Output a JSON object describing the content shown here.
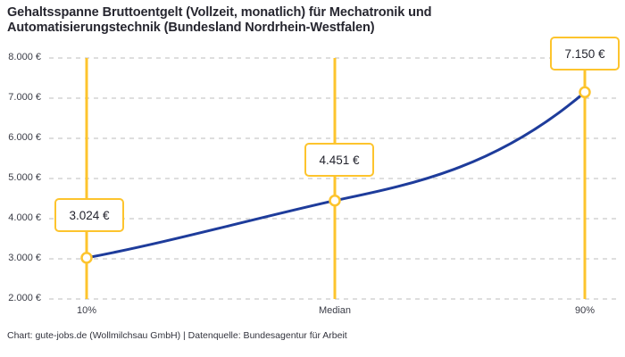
{
  "title": "Gehaltsspanne Bruttoentgelt (Vollzeit, monatlich) für Mechatronik und Automatisierungstechnik (Bundesland Nordrhein-Westfalen)",
  "footer": "Chart: gute-jobs.de (Wollmilchsau GmbH) | Datenquelle: Bundesagentur für Arbeit",
  "chart_data": {
    "type": "line",
    "categories": [
      "10%",
      "Median",
      "90%"
    ],
    "values": [
      3024,
      4451,
      7150
    ],
    "value_labels": [
      "3.024 €",
      "4.451 €",
      "7.150 €"
    ],
    "y_ticks": [
      "8.000 €",
      "7.000 €",
      "6.000 €",
      "5.000 €",
      "4.000 €",
      "3.000 €",
      "2.000 €"
    ],
    "ylim": [
      2000,
      8000
    ],
    "xlabel": "",
    "ylabel": "",
    "grid": "horizontal-dashed",
    "legend": "none",
    "colors": {
      "line": "#1e3c9b",
      "marker_fill": "#ffffff",
      "marker_stroke": "#fdc42d",
      "vertical_line": "#fdc42d",
      "grid": "#cbcbcb",
      "label_border": "#fdc42d",
      "text": "#26262f"
    }
  }
}
